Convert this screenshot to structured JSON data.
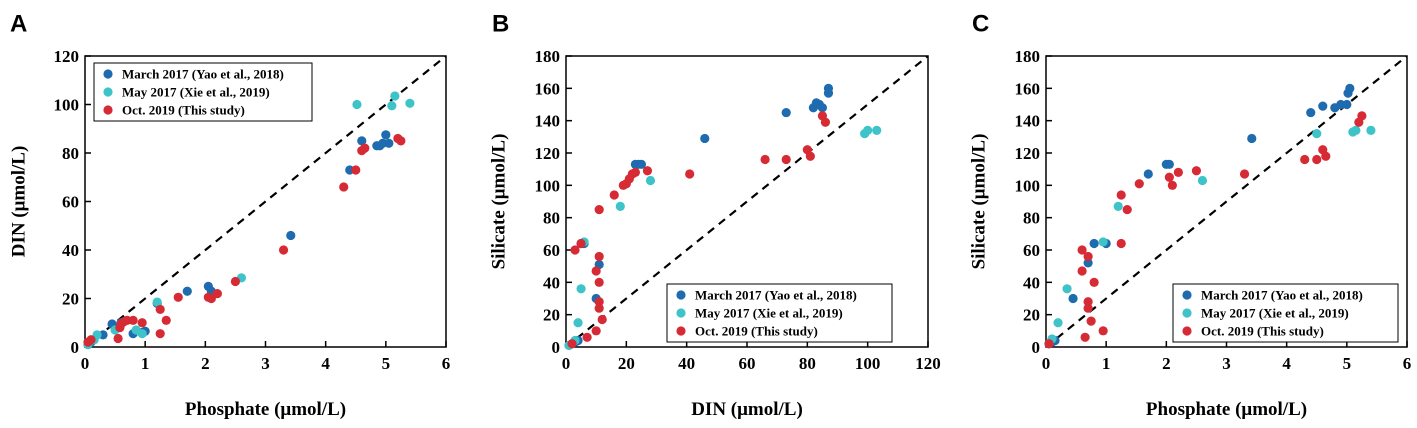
{
  "colors": {
    "march": "#1f6bb0",
    "may": "#3ec3c8",
    "oct": "#d62a35",
    "axis": "#000000",
    "ref_line": "#000000"
  },
  "chart_data": [
    {
      "panel": "A",
      "type": "scatter",
      "xlabel": "Phosphate (μmol/L)",
      "ylabel": "DIN (μmol/L)",
      "xlim": [
        0,
        6
      ],
      "ylim": [
        0,
        120
      ],
      "xticks": [
        0,
        1,
        2,
        3,
        4,
        5,
        6
      ],
      "yticks": [
        0,
        20,
        40,
        60,
        80,
        100,
        120
      ],
      "legend_position": "top-left",
      "reference_line": "1:1 dashed",
      "series": [
        {
          "name": "March 2017 (Yao et al., 2018)",
          "color_key": "march",
          "points": [
            [
              0.05,
              1
            ],
            [
              0.1,
              2
            ],
            [
              0.15,
              3
            ],
            [
              0.3,
              5
            ],
            [
              0.45,
              9.5
            ],
            [
              0.6,
              10
            ],
            [
              0.8,
              5.5
            ],
            [
              0.95,
              6
            ],
            [
              1.0,
              6.5
            ],
            [
              1.2,
              18
            ],
            [
              1.7,
              23
            ],
            [
              2.05,
              25
            ],
            [
              2.1,
              23
            ],
            [
              3.42,
              46
            ],
            [
              4.4,
              73
            ],
            [
              4.6,
              85
            ],
            [
              4.85,
              83
            ],
            [
              4.9,
              83
            ],
            [
              4.95,
              84
            ],
            [
              5.0,
              87.5
            ],
            [
              5.05,
              84
            ]
          ]
        },
        {
          "name": "May 2017 (Xie et al., 2019)",
          "color_key": "may",
          "points": [
            [
              0.05,
              1
            ],
            [
              0.15,
              3
            ],
            [
              0.2,
              5
            ],
            [
              0.5,
              7
            ],
            [
              0.85,
              7
            ],
            [
              0.95,
              5.5
            ],
            [
              1.2,
              18.5
            ],
            [
              2.6,
              28.5
            ],
            [
              4.52,
              100
            ],
            [
              5.1,
              99.5
            ],
            [
              5.15,
              103.5
            ],
            [
              5.4,
              100.5
            ]
          ]
        },
        {
          "name": "Oct. 2019 (This study)",
          "color_key": "oct",
          "points": [
            [
              0.05,
              2
            ],
            [
              0.1,
              3
            ],
            [
              0.55,
              3.5
            ],
            [
              0.58,
              8
            ],
            [
              0.6,
              9.5
            ],
            [
              0.65,
              10.5
            ],
            [
              0.7,
              11
            ],
            [
              0.8,
              11
            ],
            [
              0.95,
              10
            ],
            [
              1.25,
              5.5
            ],
            [
              1.25,
              15.5
            ],
            [
              1.35,
              11
            ],
            [
              1.55,
              20.5
            ],
            [
              2.05,
              20.5
            ],
            [
              2.1,
              20
            ],
            [
              2.2,
              22
            ],
            [
              2.5,
              27
            ],
            [
              3.3,
              40
            ],
            [
              4.3,
              66
            ],
            [
              4.5,
              73
            ],
            [
              4.6,
              81
            ],
            [
              4.65,
              82
            ],
            [
              5.2,
              86
            ],
            [
              5.25,
              85
            ]
          ]
        }
      ]
    },
    {
      "panel": "B",
      "type": "scatter",
      "xlabel": "DIN (μmol/L)",
      "ylabel": "Silicate (μmol/L)",
      "xlim": [
        0,
        120
      ],
      "ylim": [
        0,
        180
      ],
      "xticks": [
        0,
        20,
        40,
        60,
        80,
        100,
        120
      ],
      "yticks": [
        0,
        20,
        40,
        60,
        80,
        100,
        120,
        140,
        160,
        180
      ],
      "legend_position": "bottom-right",
      "reference_line": "1.5:1 dashed",
      "series": [
        {
          "name": "March 2017 (Yao et al., 2018)",
          "color_key": "march",
          "points": [
            [
              1,
              1
            ],
            [
              2,
              2
            ],
            [
              3,
              3
            ],
            [
              4,
              4
            ],
            [
              5,
              64
            ],
            [
              6,
              64
            ],
            [
              10,
              30
            ],
            [
              11,
              51
            ],
            [
              23,
              113
            ],
            [
              24,
              113
            ],
            [
              25,
              113
            ],
            [
              46,
              129
            ],
            [
              73,
              145
            ],
            [
              82,
              148
            ],
            [
              83,
              151
            ],
            [
              84,
              150
            ],
            [
              85,
              148
            ],
            [
              87,
              160
            ],
            [
              87,
              157
            ]
          ]
        },
        {
          "name": "May 2017 (Xie et al., 2019)",
          "color_key": "may",
          "points": [
            [
              1,
              1
            ],
            [
              3,
              4
            ],
            [
              4,
              15
            ],
            [
              5,
              36
            ],
            [
              6,
              65
            ],
            [
              18,
              87
            ],
            [
              28,
              103
            ],
            [
              99,
              132
            ],
            [
              100,
              134
            ],
            [
              103,
              134
            ]
          ]
        },
        {
          "name": "Oct. 2019 (This study)",
          "color_key": "oct",
          "points": [
            [
              2,
              2
            ],
            [
              3,
              60
            ],
            [
              5,
              64
            ],
            [
              7,
              6
            ],
            [
              10,
              10
            ],
            [
              10,
              47
            ],
            [
              11,
              24
            ],
            [
              11,
              28
            ],
            [
              11,
              40
            ],
            [
              11,
              56
            ],
            [
              12,
              17
            ],
            [
              11,
              85
            ],
            [
              16,
              94
            ],
            [
              19,
              100
            ],
            [
              20,
              101
            ],
            [
              21,
              104
            ],
            [
              22,
              107
            ],
            [
              23,
              108
            ],
            [
              27,
              109
            ],
            [
              41,
              107
            ],
            [
              66,
              116
            ],
            [
              73,
              116
            ],
            [
              80,
              122
            ],
            [
              81,
              118
            ],
            [
              85,
              143
            ],
            [
              86,
              139
            ]
          ]
        }
      ]
    },
    {
      "panel": "C",
      "type": "scatter",
      "xlabel": "Phosphate (μmol/L)",
      "ylabel": "Silicate (μmol/L)",
      "xlim": [
        0,
        6
      ],
      "ylim": [
        0,
        180
      ],
      "xticks": [
        0,
        1,
        2,
        3,
        4,
        5,
        6
      ],
      "yticks": [
        0,
        20,
        40,
        60,
        80,
        100,
        120,
        140,
        160,
        180
      ],
      "legend_position": "bottom-right",
      "reference_line": "30:1 dashed",
      "series": [
        {
          "name": "March 2017 (Yao et al., 2018)",
          "color_key": "march",
          "points": [
            [
              0.05,
              2
            ],
            [
              0.1,
              3
            ],
            [
              0.15,
              4
            ],
            [
              0.45,
              30
            ],
            [
              0.7,
              52
            ],
            [
              0.8,
              64
            ],
            [
              1.0,
              64
            ],
            [
              1.7,
              107
            ],
            [
              2.0,
              113
            ],
            [
              2.05,
              113
            ],
            [
              3.42,
              129
            ],
            [
              4.4,
              145
            ],
            [
              4.6,
              149
            ],
            [
              4.8,
              148
            ],
            [
              4.9,
              150
            ],
            [
              5.0,
              150
            ],
            [
              5.02,
              157
            ],
            [
              5.05,
              160
            ]
          ]
        },
        {
          "name": "May 2017 (Xie et al., 2019)",
          "color_key": "may",
          "points": [
            [
              0.05,
              2
            ],
            [
              0.1,
              5
            ],
            [
              0.2,
              15
            ],
            [
              0.35,
              36
            ],
            [
              0.95,
              65
            ],
            [
              1.2,
              87
            ],
            [
              2.6,
              103
            ],
            [
              4.5,
              132
            ],
            [
              5.1,
              133
            ],
            [
              5.15,
              134
            ],
            [
              5.4,
              134
            ]
          ]
        },
        {
          "name": "Oct. 2019 (This study)",
          "color_key": "oct",
          "points": [
            [
              0.05,
              2
            ],
            [
              0.6,
              60
            ],
            [
              0.6,
              47
            ],
            [
              0.65,
              6
            ],
            [
              0.7,
              24
            ],
            [
              0.7,
              28
            ],
            [
              0.75,
              16
            ],
            [
              0.7,
              56
            ],
            [
              0.8,
              40
            ],
            [
              0.95,
              10
            ],
            [
              1.25,
              64
            ],
            [
              1.25,
              94
            ],
            [
              1.35,
              85
            ],
            [
              1.55,
              101
            ],
            [
              2.05,
              105
            ],
            [
              2.1,
              100
            ],
            [
              2.2,
              108
            ],
            [
              2.5,
              109
            ],
            [
              3.3,
              107
            ],
            [
              4.3,
              116
            ],
            [
              4.5,
              116
            ],
            [
              4.6,
              122
            ],
            [
              4.65,
              118
            ],
            [
              5.2,
              139
            ],
            [
              5.25,
              143
            ]
          ]
        }
      ]
    }
  ]
}
